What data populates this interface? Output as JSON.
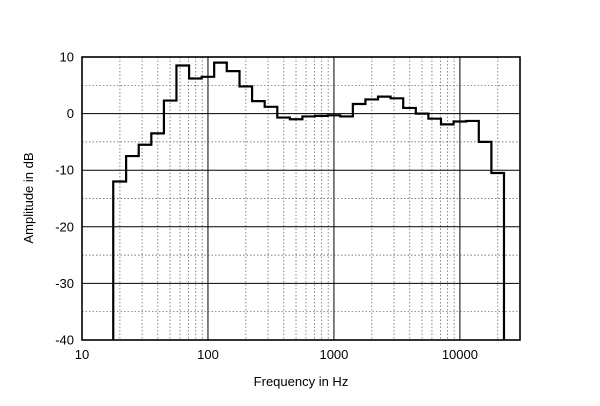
{
  "chart_data": {
    "type": "line",
    "xscale": "log",
    "xlim": [
      10,
      30000
    ],
    "ylim": [
      -40,
      10
    ],
    "xlabel": "Frequency  in Hz",
    "ylabel": "Amplitude in dB",
    "xticks": [
      {
        "value": 10,
        "label": "10"
      },
      {
        "value": 100,
        "label": "100"
      },
      {
        "value": 1000,
        "label": "1000"
      },
      {
        "value": 10000,
        "label": "10000"
      }
    ],
    "yticks": [
      {
        "value": 10,
        "label": "10"
      },
      {
        "value": 0,
        "label": "0"
      },
      {
        "value": -10,
        "label": "-10"
      },
      {
        "value": -20,
        "label": "-20"
      },
      {
        "value": -30,
        "label": "-30"
      },
      {
        "value": -40,
        "label": "-40"
      }
    ],
    "grid": true,
    "series": [
      {
        "style": "step",
        "x": [
          17.7,
          22.4,
          28.2,
          35.5,
          44.7,
          56.2,
          70.8,
          89.1,
          112,
          141,
          178,
          224,
          282,
          355,
          447,
          562,
          708,
          891,
          1122,
          1413,
          1778,
          2239,
          2818,
          3548,
          4467,
          5623,
          7079,
          8913,
          11220,
          14125,
          17783,
          22387
        ],
        "y": [
          -12,
          -7.5,
          -5.5,
          -3.5,
          2.3,
          8.5,
          6.2,
          6.5,
          9,
          7.5,
          4.8,
          2.2,
          1.2,
          -0.7,
          -1,
          -0.5,
          -0.4,
          -0.3,
          -0.5,
          1.7,
          2.5,
          3,
          2.7,
          1,
          0,
          -0.9,
          -1.9,
          -1.4,
          -1.3,
          -5,
          -10.5,
          -40
        ]
      }
    ]
  }
}
